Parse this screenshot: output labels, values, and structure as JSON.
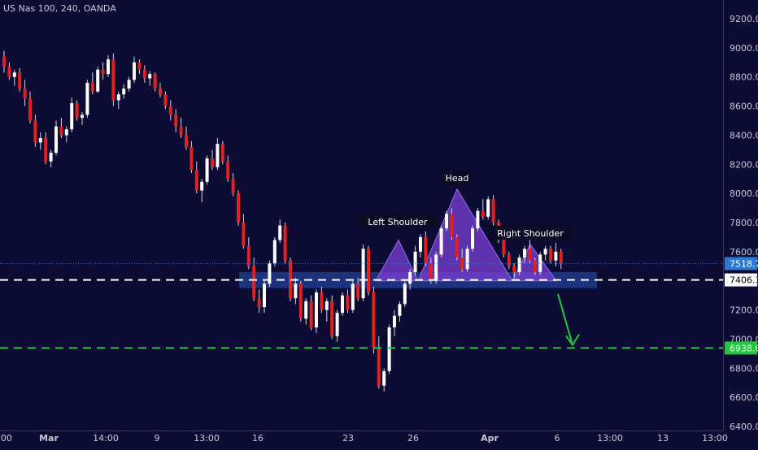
{
  "header": {
    "symbol_line": "US Nas 100, 240, OANDA"
  },
  "colors": {
    "background": "#0b0b34",
    "bull": "#ffffff",
    "bear": "#e41f1f",
    "wick": "#d8d8d8",
    "pattern_fill": "#7b3fd6",
    "zone_fill": "#1f3a8a",
    "support_line": "#ffffff",
    "target_line": "#21c93a",
    "arrow": "#21c93a",
    "current_price_line": "#2b7bd6",
    "current_price_badge": "#2b7bd6",
    "target_badge": "#21c93a",
    "axis_text": "#c8c8d8"
  },
  "price_axis": {
    "labels": [
      "9200.0",
      "9000.0",
      "8800.0",
      "8600.0",
      "8400.0",
      "8200.0",
      "8000.0",
      "7800.0",
      "7600.0",
      "7400.0",
      "7200.0",
      "7000.0",
      "6800.0",
      "6600.0",
      "6400.0"
    ],
    "badges": [
      {
        "text": "7518.7",
        "value": 7518.7,
        "role": "current"
      },
      {
        "text": "7406.3",
        "value": 7406.3,
        "role": "support"
      },
      {
        "text": "6938.6",
        "value": 6938.6,
        "role": "target"
      }
    ]
  },
  "time_axis": {
    "labels": [
      {
        "text": ":00",
        "bold": false
      },
      {
        "text": "Mar",
        "bold": true
      },
      {
        "text": "14:00",
        "bold": false
      },
      {
        "text": "9",
        "bold": false
      },
      {
        "text": "13:00",
        "bold": false
      },
      {
        "text": "16",
        "bold": false
      },
      {
        "text": "23",
        "bold": false
      },
      {
        "text": "26",
        "bold": false
      },
      {
        "text": "Apr",
        "bold": true
      },
      {
        "text": "6",
        "bold": false
      },
      {
        "text": "13:00",
        "bold": false
      },
      {
        "text": "13",
        "bold": false
      },
      {
        "text": "13:00",
        "bold": false
      }
    ]
  },
  "annotations": {
    "left_shoulder": "Left Shoulder",
    "head": "Head",
    "right_shoulder": "Right Shoulder"
  },
  "chart_data": {
    "type": "candlestick",
    "title": "US Nas 100, 240, OANDA",
    "ylim": [
      6400,
      9300
    ],
    "support_level": 7406.3,
    "target_level": 6938.6,
    "current_price": 7518.7,
    "pattern": "head-and-shoulders",
    "candles": [
      [
        8940,
        8980,
        8830,
        8870
      ],
      [
        8870,
        8900,
        8780,
        8800
      ],
      [
        8800,
        8850,
        8740,
        8830
      ],
      [
        8830,
        8860,
        8700,
        8720
      ],
      [
        8720,
        8780,
        8600,
        8650
      ],
      [
        8650,
        8700,
        8480,
        8500
      ],
      [
        8500,
        8540,
        8320,
        8350
      ],
      [
        8350,
        8420,
        8300,
        8380
      ],
      [
        8380,
        8420,
        8200,
        8220
      ],
      [
        8220,
        8300,
        8180,
        8280
      ],
      [
        8280,
        8500,
        8260,
        8460
      ],
      [
        8460,
        8520,
        8380,
        8400
      ],
      [
        8400,
        8460,
        8350,
        8440
      ],
      [
        8440,
        8660,
        8420,
        8620
      ],
      [
        8620,
        8640,
        8500,
        8520
      ],
      [
        8520,
        8560,
        8470,
        8540
      ],
      [
        8540,
        8780,
        8520,
        8760
      ],
      [
        8760,
        8830,
        8680,
        8700
      ],
      [
        8700,
        8870,
        8690,
        8850
      ],
      [
        8850,
        8900,
        8780,
        8820
      ],
      [
        8820,
        8950,
        8800,
        8920
      ],
      [
        8920,
        8960,
        8600,
        8640
      ],
      [
        8640,
        8700,
        8580,
        8680
      ],
      [
        8680,
        8750,
        8650,
        8720
      ],
      [
        8720,
        8800,
        8700,
        8780
      ],
      [
        8780,
        8940,
        8760,
        8900
      ],
      [
        8900,
        8920,
        8820,
        8850
      ],
      [
        8850,
        8880,
        8760,
        8790
      ],
      [
        8790,
        8840,
        8740,
        8820
      ],
      [
        8820,
        8830,
        8700,
        8720
      ],
      [
        8720,
        8760,
        8660,
        8680
      ],
      [
        8680,
        8700,
        8580,
        8600
      ],
      [
        8600,
        8640,
        8500,
        8540
      ],
      [
        8540,
        8580,
        8420,
        8460
      ],
      [
        8460,
        8520,
        8380,
        8400
      ],
      [
        8400,
        8460,
        8300,
        8320
      ],
      [
        8320,
        8360,
        8140,
        8160
      ],
      [
        8160,
        8220,
        8000,
        8020
      ],
      [
        8020,
        8100,
        7940,
        8080
      ],
      [
        8080,
        8260,
        8060,
        8240
      ],
      [
        8240,
        8300,
        8160,
        8180
      ],
      [
        8180,
        8380,
        8160,
        8340
      ],
      [
        8340,
        8360,
        8200,
        8220
      ],
      [
        8220,
        8260,
        8080,
        8100
      ],
      [
        8100,
        8140,
        7980,
        8000
      ],
      [
        8000,
        8020,
        7780,
        7800
      ],
      [
        7800,
        7860,
        7620,
        7640
      ],
      [
        7640,
        7700,
        7480,
        7500
      ],
      [
        7500,
        7560,
        7260,
        7280
      ],
      [
        7280,
        7340,
        7180,
        7220
      ],
      [
        7220,
        7400,
        7180,
        7380
      ],
      [
        7380,
        7540,
        7360,
        7520
      ],
      [
        7520,
        7700,
        7500,
        7680
      ],
      [
        7680,
        7820,
        7660,
        7780
      ],
      [
        7780,
        7800,
        7520,
        7540
      ],
      [
        7540,
        7560,
        7260,
        7280
      ],
      [
        7280,
        7420,
        7240,
        7380
      ],
      [
        7380,
        7400,
        7120,
        7140
      ],
      [
        7140,
        7280,
        7100,
        7260
      ],
      [
        7260,
        7300,
        7060,
        7080
      ],
      [
        7080,
        7340,
        7040,
        7320
      ],
      [
        7320,
        7360,
        7180,
        7200
      ],
      [
        7200,
        7280,
        7120,
        7260
      ],
      [
        7260,
        7300,
        7000,
        7020
      ],
      [
        7020,
        7200,
        6980,
        7180
      ],
      [
        7180,
        7320,
        7160,
        7300
      ],
      [
        7300,
        7340,
        7180,
        7200
      ],
      [
        7200,
        7400,
        7180,
        7380
      ],
      [
        7380,
        7420,
        7260,
        7280
      ],
      [
        7280,
        7650,
        7260,
        7620
      ],
      [
        7620,
        7640,
        7300,
        7320
      ],
      [
        7320,
        7360,
        6900,
        6940
      ],
      [
        6940,
        7020,
        6660,
        6680
      ],
      [
        6680,
        6800,
        6640,
        6780
      ],
      [
        6780,
        7100,
        6760,
        7080
      ],
      [
        7080,
        7200,
        7020,
        7160
      ],
      [
        7160,
        7260,
        7120,
        7240
      ],
      [
        7240,
        7400,
        7220,
        7380
      ],
      [
        7380,
        7480,
        7340,
        7460
      ],
      [
        7460,
        7640,
        7440,
        7600
      ],
      [
        7600,
        7720,
        7560,
        7700
      ],
      [
        7700,
        7740,
        7500,
        7520
      ],
      [
        7520,
        7560,
        7380,
        7400
      ],
      [
        7400,
        7600,
        7380,
        7580
      ],
      [
        7580,
        7780,
        7560,
        7760
      ],
      [
        7760,
        7880,
        7740,
        7860
      ],
      [
        7860,
        7900,
        7680,
        7700
      ],
      [
        7700,
        7720,
        7540,
        7560
      ],
      [
        7560,
        7620,
        7460,
        7480
      ],
      [
        7480,
        7640,
        7460,
        7620
      ],
      [
        7620,
        7780,
        7600,
        7760
      ],
      [
        7760,
        7900,
        7740,
        7880
      ],
      [
        7880,
        7960,
        7820,
        7840
      ],
      [
        7840,
        7980,
        7820,
        7960
      ],
      [
        7960,
        7990,
        7780,
        7800
      ],
      [
        7800,
        7820,
        7660,
        7680
      ],
      [
        7680,
        7700,
        7560,
        7580
      ],
      [
        7580,
        7600,
        7480,
        7500
      ],
      [
        7500,
        7520,
        7420,
        7460
      ],
      [
        7460,
        7580,
        7440,
        7560
      ],
      [
        7560,
        7640,
        7520,
        7620
      ],
      [
        7620,
        7680,
        7520,
        7540
      ],
      [
        7540,
        7560,
        7440,
        7460
      ],
      [
        7460,
        7600,
        7440,
        7580
      ],
      [
        7580,
        7640,
        7540,
        7620
      ],
      [
        7620,
        7640,
        7520,
        7540
      ],
      [
        7540,
        7660,
        7500,
        7600
      ],
      [
        7600,
        7620,
        7480,
        7519
      ]
    ]
  }
}
